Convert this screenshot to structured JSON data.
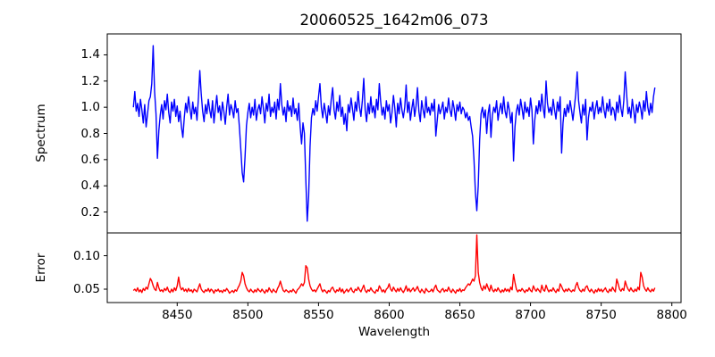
{
  "figure": {
    "background": "#ffffff",
    "text_color": "#000000",
    "spine_color": "#000000"
  },
  "chart_data": {
    "type": "line",
    "title": "20060525_1642m06_073",
    "xlabel": "Wavelength",
    "grid": false,
    "legend": "none",
    "x_start": 8419,
    "x_step": 1,
    "xlim": [
      8400.5,
      8806.5
    ],
    "x_ticks": [
      8450,
      8500,
      8550,
      8600,
      8650,
      8700,
      8750,
      8800
    ],
    "x_tick_labels": [
      "8450",
      "8500",
      "8550",
      "8600",
      "8650",
      "8700",
      "8750",
      "8800"
    ],
    "panels": [
      {
        "name": "spectrum",
        "ylabel": "Spectrum",
        "ylim": [
          0.04,
          1.56
        ],
        "y_ticks": [
          0.2,
          0.4,
          0.6,
          0.8,
          1.0,
          1.2,
          1.4
        ],
        "y_tick_labels": [
          "0.2",
          "0.4",
          "0.6",
          "0.8",
          "1.0",
          "1.2",
          "1.4"
        ],
        "line_color": "#0000ff",
        "values": [
          1.0,
          1.12,
          0.97,
          1.03,
          0.93,
          1.06,
          0.98,
          0.88,
          1.02,
          0.85,
          0.95,
          1.05,
          1.08,
          1.18,
          1.47,
          1.12,
          0.95,
          0.61,
          0.82,
          0.94,
          1.02,
          0.91,
          1.05,
          0.98,
          1.1,
          0.96,
          0.88,
          1.04,
          0.97,
          1.06,
          0.93,
          1.01,
          0.89,
          0.97,
          0.85,
          0.77,
          0.92,
          1.03,
          0.96,
          1.08,
          0.99,
          0.91,
          1.04,
          0.95,
          1.0,
          0.9,
          1.07,
          1.28,
          1.1,
          0.97,
          0.89,
          1.02,
          0.95,
          1.06,
          0.98,
          0.92,
          1.05,
          0.88,
          0.99,
          1.09,
          0.96,
          1.01,
          0.9,
          1.04,
          0.97,
          0.87,
          1.0,
          1.1,
          0.94,
          1.02,
          0.98,
          0.92,
          1.05,
          0.96,
          0.99,
          0.85,
          0.68,
          0.5,
          0.43,
          0.62,
          0.86,
          0.96,
          1.03,
          0.92,
          1.0,
          0.94,
          1.06,
          0.9,
          0.98,
          1.02,
          0.95,
          1.08,
          0.99,
          0.88,
          1.03,
          0.97,
          1.1,
          0.93,
          1.0,
          0.96,
          1.04,
          0.91,
          1.06,
          0.98,
          1.18,
          1.02,
          0.94,
          1.0,
          0.89,
          1.05,
          0.97,
          1.01,
          0.93,
          1.07,
          0.95,
          0.99,
          0.9,
          1.03,
          0.85,
          0.72,
          0.88,
          0.8,
          0.45,
          0.13,
          0.32,
          0.7,
          0.92,
          0.99,
          0.94,
          1.05,
          0.97,
          1.08,
          1.18,
          1.0,
          0.92,
          1.03,
          0.96,
          0.88,
          1.01,
          0.94,
          1.06,
          1.15,
          0.98,
          0.91,
          1.04,
          0.97,
          1.09,
          0.93,
          1.0,
          0.87,
          0.95,
          0.82,
          1.02,
          0.96,
          1.07,
          0.99,
          0.9,
          1.04,
          0.97,
          1.12,
          1.0,
          0.93,
          1.05,
          1.22,
          0.98,
          0.89,
          1.03,
          0.95,
          1.08,
          0.96,
          1.01,
          0.92,
          1.06,
          0.98,
          1.18,
          1.04,
          0.94,
          1.0,
          0.91,
          1.05,
          0.97,
          1.02,
          0.88,
          0.96,
          1.09,
          0.99,
          0.85,
          1.03,
          0.95,
          1.07,
          0.98,
          0.92,
          1.0,
          1.17,
          0.96,
          1.04,
          0.9,
          0.99,
          1.06,
          0.93,
          1.01,
          1.15,
          0.97,
          0.89,
          1.05,
          0.98,
          0.92,
          1.08,
          0.96,
          1.0,
          0.94,
          1.03,
          0.97,
          1.06,
          0.78,
          0.9,
          1.02,
          0.95,
          0.99,
          1.04,
          0.91,
          1.0,
          0.96,
          1.07,
          0.98,
          0.93,
          1.05,
          0.99,
          0.9,
          1.02,
          0.97,
          1.04,
          0.95,
          1.0,
          0.98,
          0.92,
          0.96,
          0.9,
          0.93,
          0.85,
          0.78,
          0.6,
          0.35,
          0.21,
          0.4,
          0.75,
          0.95,
          1.0,
          0.92,
          0.98,
          0.8,
          0.95,
          1.02,
          0.77,
          0.94,
          1.0,
          0.96,
          1.05,
          0.9,
          0.98,
          1.03,
          0.95,
          1.08,
          0.97,
          0.92,
          1.04,
          0.98,
          0.88,
          0.96,
          0.59,
          0.85,
          0.97,
          1.02,
          0.94,
          1.06,
          0.99,
          0.91,
          1.04,
          0.96,
          1.0,
          0.93,
          1.07,
          0.98,
          0.72,
          0.9,
          1.01,
          0.95,
          1.05,
          0.97,
          1.1,
          0.99,
          0.92,
          1.2,
          1.03,
          0.96,
          1.0,
          0.94,
          1.06,
          0.98,
          0.91,
          1.04,
          0.97,
          1.08,
          0.65,
          0.88,
          0.99,
          0.93,
          1.02,
          0.96,
          1.05,
          0.98,
          0.9,
          1.0,
          1.1,
          1.27,
          1.05,
          0.96,
          0.88,
          1.02,
          0.94,
          1.06,
          0.75,
          0.92,
          1.0,
          0.97,
          1.04,
          0.91,
          0.99,
          1.05,
          0.95,
          1.0,
          0.96,
          1.08,
          0.98,
          0.92,
          1.03,
          0.97,
          1.06,
          0.94,
          1.0,
          0.98,
          0.9,
          1.04,
          0.96,
          1.09,
          0.99,
          0.93,
          1.05,
          1.27,
          1.1,
          0.95,
          1.0,
          0.92,
          1.06,
          0.98,
          0.88,
          1.02,
          0.96,
          1.04,
          0.99,
          0.91,
          1.05,
          0.97,
          1.12,
          1.0,
          0.94,
          1.03,
          0.96,
          1.08,
          1.15
        ]
      },
      {
        "name": "error",
        "ylabel": "Error",
        "ylim": [
          0.03,
          0.134
        ],
        "y_ticks": [
          0.05,
          0.1
        ],
        "y_tick_labels": [
          "0.05",
          "0.10"
        ],
        "line_color": "#ff0000",
        "values": [
          0.048,
          0.05,
          0.047,
          0.052,
          0.046,
          0.049,
          0.045,
          0.051,
          0.048,
          0.053,
          0.05,
          0.058,
          0.066,
          0.062,
          0.055,
          0.05,
          0.048,
          0.06,
          0.052,
          0.047,
          0.049,
          0.046,
          0.051,
          0.048,
          0.053,
          0.047,
          0.045,
          0.05,
          0.046,
          0.052,
          0.048,
          0.055,
          0.068,
          0.054,
          0.049,
          0.052,
          0.047,
          0.05,
          0.046,
          0.051,
          0.047,
          0.049,
          0.045,
          0.05,
          0.048,
          0.046,
          0.052,
          0.058,
          0.05,
          0.047,
          0.045,
          0.049,
          0.047,
          0.051,
          0.046,
          0.05,
          0.048,
          0.044,
          0.049,
          0.047,
          0.05,
          0.046,
          0.048,
          0.045,
          0.049,
          0.047,
          0.051,
          0.048,
          0.044,
          0.046,
          0.048,
          0.045,
          0.049,
          0.047,
          0.052,
          0.056,
          0.062,
          0.075,
          0.07,
          0.058,
          0.052,
          0.048,
          0.046,
          0.05,
          0.047,
          0.045,
          0.049,
          0.046,
          0.051,
          0.048,
          0.046,
          0.05,
          0.047,
          0.044,
          0.049,
          0.046,
          0.052,
          0.048,
          0.045,
          0.05,
          0.047,
          0.045,
          0.051,
          0.055,
          0.062,
          0.054,
          0.048,
          0.046,
          0.049,
          0.047,
          0.045,
          0.048,
          0.046,
          0.05,
          0.047,
          0.044,
          0.049,
          0.051,
          0.054,
          0.058,
          0.055,
          0.06,
          0.085,
          0.082,
          0.065,
          0.055,
          0.05,
          0.047,
          0.049,
          0.046,
          0.05,
          0.054,
          0.058,
          0.05,
          0.046,
          0.049,
          0.047,
          0.044,
          0.048,
          0.046,
          0.051,
          0.053,
          0.048,
          0.045,
          0.049,
          0.047,
          0.052,
          0.046,
          0.05,
          0.044,
          0.047,
          0.05,
          0.046,
          0.049,
          0.052,
          0.047,
          0.045,
          0.05,
          0.048,
          0.053,
          0.049,
          0.046,
          0.051,
          0.056,
          0.048,
          0.045,
          0.049,
          0.047,
          0.052,
          0.048,
          0.046,
          0.044,
          0.049,
          0.047,
          0.055,
          0.051,
          0.046,
          0.049,
          0.045,
          0.05,
          0.052,
          0.058,
          0.05,
          0.047,
          0.053,
          0.049,
          0.046,
          0.051,
          0.047,
          0.052,
          0.048,
          0.045,
          0.049,
          0.055,
          0.047,
          0.051,
          0.046,
          0.049,
          0.052,
          0.047,
          0.05,
          0.054,
          0.048,
          0.045,
          0.05,
          0.047,
          0.044,
          0.051,
          0.048,
          0.046,
          0.047,
          0.05,
          0.046,
          0.052,
          0.056,
          0.049,
          0.047,
          0.045,
          0.049,
          0.051,
          0.046,
          0.049,
          0.047,
          0.053,
          0.048,
          0.045,
          0.05,
          0.047,
          0.044,
          0.049,
          0.047,
          0.051,
          0.046,
          0.049,
          0.048,
          0.052,
          0.055,
          0.058,
          0.056,
          0.06,
          0.065,
          0.062,
          0.07,
          0.131,
          0.075,
          0.06,
          0.052,
          0.048,
          0.055,
          0.05,
          0.058,
          0.052,
          0.047,
          0.056,
          0.049,
          0.046,
          0.05,
          0.047,
          0.052,
          0.048,
          0.045,
          0.049,
          0.046,
          0.051,
          0.047,
          0.05,
          0.046,
          0.053,
          0.049,
          0.072,
          0.06,
          0.05,
          0.046,
          0.049,
          0.047,
          0.051,
          0.048,
          0.045,
          0.049,
          0.047,
          0.052,
          0.048,
          0.046,
          0.055,
          0.05,
          0.047,
          0.051,
          0.048,
          0.045,
          0.056,
          0.049,
          0.047,
          0.056,
          0.05,
          0.046,
          0.049,
          0.047,
          0.052,
          0.048,
          0.045,
          0.05,
          0.047,
          0.058,
          0.054,
          0.049,
          0.046,
          0.05,
          0.047,
          0.051,
          0.048,
          0.046,
          0.049,
          0.047,
          0.055,
          0.06,
          0.052,
          0.048,
          0.046,
          0.05,
          0.047,
          0.053,
          0.055,
          0.049,
          0.046,
          0.05,
          0.047,
          0.044,
          0.049,
          0.046,
          0.051,
          0.047,
          0.05,
          0.046,
          0.049,
          0.052,
          0.047,
          0.045,
          0.05,
          0.047,
          0.053,
          0.049,
          0.046,
          0.065,
          0.058,
          0.05,
          0.047,
          0.051,
          0.048,
          0.062,
          0.055,
          0.05,
          0.047,
          0.052,
          0.048,
          0.046,
          0.05,
          0.047,
          0.053,
          0.049,
          0.075,
          0.068,
          0.055,
          0.05,
          0.047,
          0.052,
          0.048,
          0.046,
          0.05,
          0.047,
          0.052
        ]
      }
    ]
  }
}
